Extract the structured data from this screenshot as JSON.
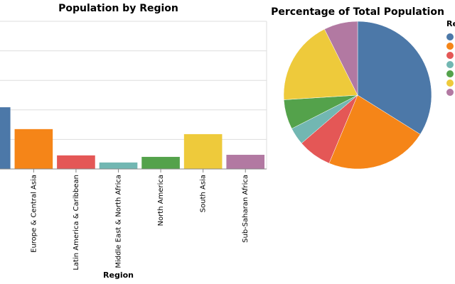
{
  "chart_data": [
    {
      "type": "bar",
      "title": "Population by Region",
      "x_title": "Region",
      "categories": [
        null,
        "Europe & Central Asia",
        "Latin America & Caribbean",
        "Middle East & North Africa",
        "North America",
        "South Asia",
        "Sub-Saharan Africa"
      ],
      "values": [
        2.09,
        1.35,
        0.46,
        0.22,
        0.41,
        1.18,
        0.48
      ],
      "colors": [
        "#4c78a8",
        "#f58518",
        "#e45756",
        "#72b7b2",
        "#54a24b",
        "#eeca3b",
        "#b279a2"
      ],
      "ylim": [
        0,
        5
      ],
      "yticks": [
        0,
        1,
        2,
        3,
        4,
        5
      ],
      "grid": true
    },
    {
      "type": "pie",
      "title": "Percentage of Total Population",
      "legend_title": "Region",
      "values": [
        33.9,
        22.4,
        7.4,
        3.8,
        6.5,
        18.6,
        7.4
      ],
      "colors": [
        "#4c78a8",
        "#f58518",
        "#e45756",
        "#72b7b2",
        "#54a24b",
        "#eeca3b",
        "#b279a2"
      ]
    }
  ]
}
